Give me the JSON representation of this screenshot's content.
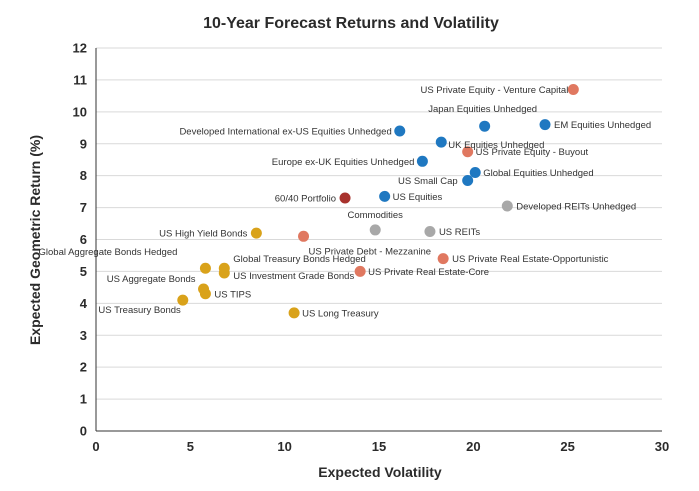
{
  "chart_data": {
    "type": "scatter",
    "title": "10-Year Forecast Returns and Volatility",
    "xlabel": "Expected Volatility",
    "ylabel": "Expected Geometric Return (%)",
    "xlim": [
      0,
      30
    ],
    "ylim": [
      0,
      12
    ],
    "x_ticks": [
      "0",
      "5",
      "10",
      "15",
      "20",
      "25",
      "30"
    ],
    "y_ticks": [
      "0",
      "1",
      "2",
      "3",
      "4",
      "5",
      "6",
      "7",
      "8",
      "9",
      "10",
      "11",
      "12"
    ],
    "grid": "horizontal",
    "legend": "none",
    "colors": {
      "fixed_income": "#d9a21a",
      "equity": "#1f78c1",
      "private": "#e07860",
      "real_assets": "#a8a8a8",
      "portfolio": "#a8322d"
    },
    "points": [
      {
        "label": "US Private Equity - Venture Capital",
        "x": 25.3,
        "y": 10.7,
        "group": "private"
      },
      {
        "label": "Japan Equities Unhedged",
        "x": 20.6,
        "y": 9.55,
        "group": "equity"
      },
      {
        "label": "EM Equities Unhedged",
        "x": 23.8,
        "y": 9.6,
        "group": "equity"
      },
      {
        "label": "Developed International ex-US Equities Unhedged",
        "x": 16.1,
        "y": 9.4,
        "group": "equity"
      },
      {
        "label": "UK Equities Unhedged",
        "x": 18.3,
        "y": 9.05,
        "group": "equity"
      },
      {
        "label": "US Private Equity - Buyout",
        "x": 19.7,
        "y": 8.75,
        "group": "private"
      },
      {
        "label": "Europe ex-UK Equities Unhedged",
        "x": 17.3,
        "y": 8.45,
        "group": "equity"
      },
      {
        "label": "Global Equities Unhedged",
        "x": 20.1,
        "y": 8.1,
        "group": "equity"
      },
      {
        "label": "US Small Cap",
        "x": 19.7,
        "y": 7.85,
        "group": "equity"
      },
      {
        "label": "60/40 Portfolio",
        "x": 13.2,
        "y": 7.3,
        "group": "portfolio"
      },
      {
        "label": "US Equities",
        "x": 15.3,
        "y": 7.35,
        "group": "equity"
      },
      {
        "label": "Developed REITs Unhedged",
        "x": 21.8,
        "y": 7.05,
        "group": "real_assets"
      },
      {
        "label": "Commodities",
        "x": 14.8,
        "y": 6.3,
        "group": "real_assets"
      },
      {
        "label": "US REITs",
        "x": 17.7,
        "y": 6.25,
        "group": "real_assets"
      },
      {
        "label": "US High Yield Bonds",
        "x": 8.5,
        "y": 6.2,
        "group": "fixed_income"
      },
      {
        "label": "US Private Debt - Mezzanine",
        "x": 11.0,
        "y": 6.1,
        "group": "private"
      },
      {
        "label": "US Private Real Estate-Opportunistic",
        "x": 18.4,
        "y": 5.4,
        "group": "private"
      },
      {
        "label": "Global Aggregate Bonds Hedged",
        "x": 5.8,
        "y": 5.1,
        "group": "fixed_income"
      },
      {
        "label": "Global Treasury Bonds Hedged",
        "x": 6.8,
        "y": 5.1,
        "group": "fixed_income"
      },
      {
        "label": "US Investment Grade Bonds",
        "x": 6.8,
        "y": 4.95,
        "group": "fixed_income"
      },
      {
        "label": "US Private Real Estate-Core",
        "x": 14.0,
        "y": 5.0,
        "group": "private"
      },
      {
        "label": "US Aggregate Bonds",
        "x": 5.7,
        "y": 4.45,
        "group": "fixed_income"
      },
      {
        "label": "US TIPS",
        "x": 5.8,
        "y": 4.3,
        "group": "fixed_income"
      },
      {
        "label": "US Treasury Bonds",
        "x": 4.6,
        "y": 4.1,
        "group": "fixed_income"
      },
      {
        "label": "US Long Treasury",
        "x": 10.5,
        "y": 3.7,
        "group": "fixed_income"
      }
    ]
  }
}
